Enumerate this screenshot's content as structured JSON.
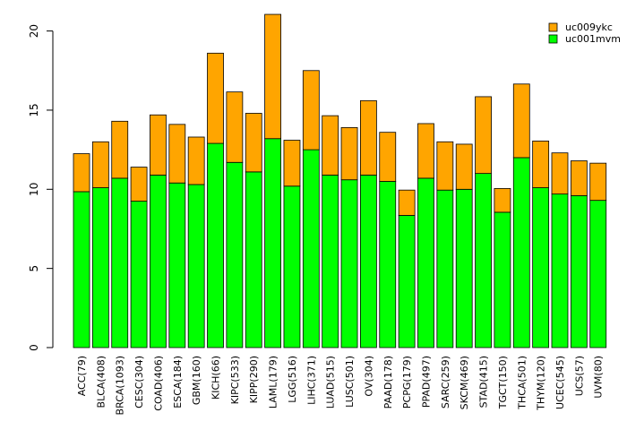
{
  "chart_data": {
    "type": "bar",
    "stacked": true,
    "title": "",
    "xlabel": "",
    "ylabel": "",
    "ylim": [
      0,
      21
    ],
    "yticks": [
      0,
      5,
      10,
      15,
      20
    ],
    "categories": [
      "ACC(79)",
      "BLCA(408)",
      "BRCA(1093)",
      "CESC(304)",
      "COAD(406)",
      "ESCA(184)",
      "GBM(160)",
      "KICH(66)",
      "KIPC(533)",
      "KIPP(290)",
      "LAML(179)",
      "LGG(516)",
      "LIHC(371)",
      "LUAD(515)",
      "LUSC(501)",
      "OV(304)",
      "PAAD(178)",
      "PCPG(179)",
      "PPAD(497)",
      "SARC(259)",
      "SKCM(469)",
      "STAD(415)",
      "TGCT(150)",
      "THCA(501)",
      "THYM(120)",
      "UCEC(545)",
      "UCS(57)",
      "UVM(80)"
    ],
    "series": [
      {
        "name": "uc001mvm",
        "color": "#00ff00",
        "values": [
          9.85,
          10.1,
          10.7,
          9.25,
          10.9,
          10.4,
          10.3,
          12.9,
          11.7,
          11.1,
          13.2,
          10.2,
          12.5,
          10.9,
          10.6,
          10.9,
          10.5,
          8.35,
          10.7,
          9.95,
          10.0,
          11.0,
          8.55,
          12.0,
          10.1,
          9.7,
          9.6,
          9.3
        ]
      },
      {
        "name": "uc009ykc",
        "color": "#ffa500",
        "values": [
          2.4,
          2.9,
          3.6,
          2.15,
          3.8,
          3.7,
          3.0,
          5.7,
          4.45,
          3.7,
          7.85,
          2.9,
          5.0,
          3.75,
          3.3,
          4.7,
          3.1,
          1.6,
          3.45,
          3.05,
          2.85,
          4.85,
          1.5,
          4.65,
          2.95,
          2.6,
          2.2,
          2.35
        ]
      }
    ],
    "legend": {
      "position": "top-right",
      "entries": [
        {
          "label": "uc009ykc",
          "color": "#ffa500"
        },
        {
          "label": "uc001mvm",
          "color": "#00ff00"
        }
      ]
    },
    "grid": false
  }
}
